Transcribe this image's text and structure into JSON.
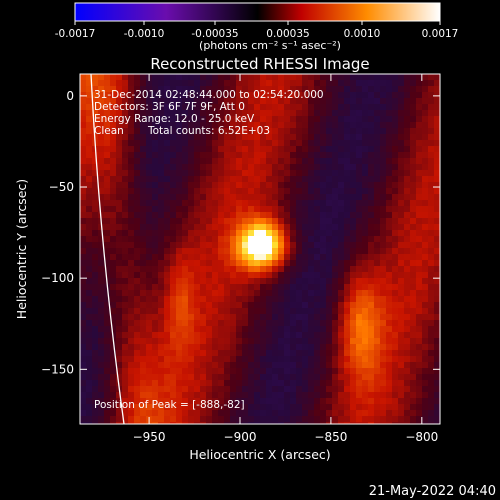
{
  "colorbar": {
    "ticks": [
      "-0.0017",
      "-0.0010",
      "-0.00035",
      "0.00035",
      "0.0010",
      "0.0017"
    ],
    "unit_label": "(photons cm⁻² s⁻¹ asec⁻²)",
    "colors": [
      "#0000ff",
      "#6a0dad",
      "#000000",
      "#ff0000",
      "#ff8c00",
      "#ffffff"
    ]
  },
  "chart_data": {
    "type": "heatmap",
    "title": "Reconstructed RHESSI Image",
    "xlabel": "Heliocentric X (arcsec)",
    "ylabel": "Heliocentric Y (arcsec)",
    "xlim": [
      -988,
      -790
    ],
    "ylim": [
      -180,
      12
    ],
    "xticks": [
      -950,
      -900,
      -850,
      -800
    ],
    "yticks": [
      0,
      -50,
      -100,
      -150
    ],
    "value_range": [
      -0.0017,
      0.0017
    ],
    "peak": {
      "x": -888,
      "y": -82
    },
    "annotations": {
      "time": "31-Dec-2014 02:48:44.000 to 02:54:20.000",
      "detectors": "Detectors: 3F 6F 7F 9F, Att 0",
      "energy": "Energy Range: 12.0 - 25.0 keV",
      "clean_label": "Clean",
      "counts": "Total counts: 6.52E+03",
      "peak_text": "Position of Peak = [-888,-82]"
    }
  },
  "footer": {
    "timestamp": "21-May-2022 04:40"
  }
}
